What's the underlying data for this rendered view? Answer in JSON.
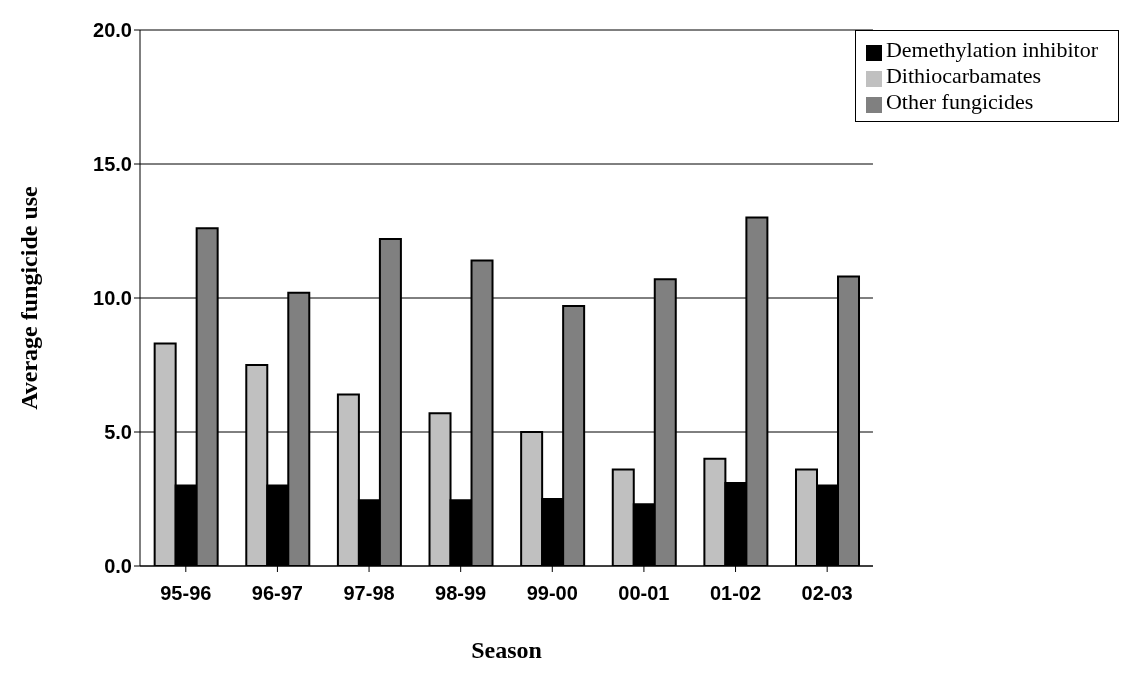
{
  "chart_data": {
    "type": "bar",
    "xlabel": "Season",
    "ylabel": "Average fungicide use",
    "categories": [
      "95-96",
      "96-97",
      "97-98",
      "98-99",
      "99-00",
      "00-01",
      "01-02",
      "02-03"
    ],
    "series": [
      {
        "name": "Dithiocarbamates",
        "color": "#c0c0c0",
        "values": [
          8.3,
          7.5,
          6.4,
          5.7,
          5.0,
          3.6,
          4.0,
          3.6
        ]
      },
      {
        "name": "Demethylation inhibitor",
        "color": "#000000",
        "values": [
          3.0,
          3.0,
          2.45,
          2.45,
          2.5,
          2.3,
          3.1,
          3.0
        ]
      },
      {
        "name": "Other fungicides",
        "color": "#808080",
        "values": [
          12.6,
          10.2,
          12.2,
          11.4,
          9.7,
          10.7,
          13.0,
          10.8
        ]
      }
    ],
    "ylim": [
      0,
      20
    ],
    "yticks": [
      {
        "value": 0,
        "label": "0.0"
      },
      {
        "value": 5,
        "label": "5.0"
      },
      {
        "value": 10,
        "label": "10.0"
      },
      {
        "value": 15,
        "label": "15.0"
      },
      {
        "value": 20,
        "label": "20.0"
      }
    ],
    "grid": "y",
    "legend": "top right"
  }
}
